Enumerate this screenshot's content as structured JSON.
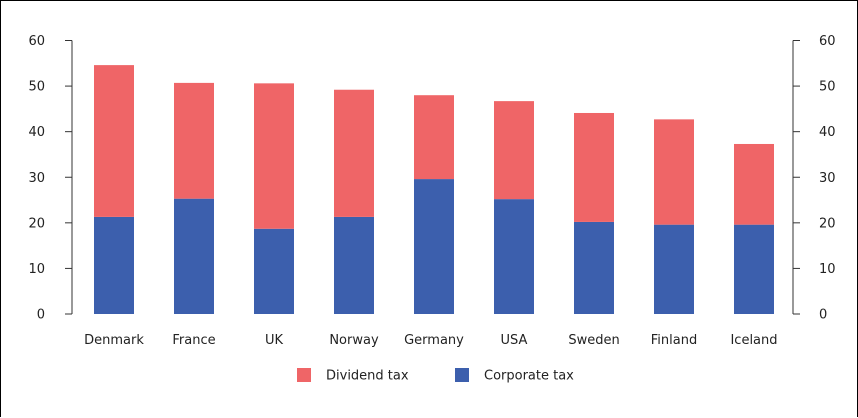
{
  "chart_data": {
    "type": "bar",
    "stacked": true,
    "categories": [
      "Denmark",
      "France",
      "UK",
      "Norway",
      "Germany",
      "USA",
      "Sweden",
      "Finland",
      "Iceland"
    ],
    "series": [
      {
        "name": "Corporate tax",
        "color": "#3c5fad",
        "values": [
          21.3,
          25.3,
          18.7,
          21.3,
          29.6,
          25.2,
          20.2,
          19.6,
          19.6
        ]
      },
      {
        "name": "Dividend tax",
        "color": "#ef6567",
        "values": [
          33.3,
          25.4,
          31.9,
          27.9,
          18.4,
          21.5,
          23.9,
          23.1,
          17.7
        ]
      }
    ],
    "legend_order": [
      "Dividend tax",
      "Corporate tax"
    ],
    "ylim": [
      0,
      60
    ],
    "yticks": [
      0,
      10,
      20,
      30,
      40,
      50,
      60
    ],
    "title": "",
    "xlabel": "",
    "ylabel": "",
    "grid": false,
    "legend_position": "bottom-center",
    "secondary_y_axis": true
  }
}
